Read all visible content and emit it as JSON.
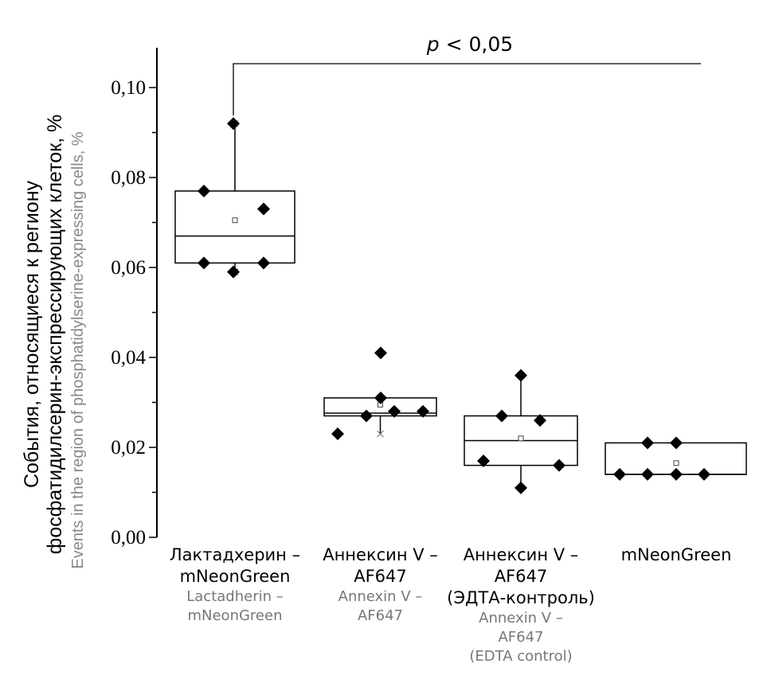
{
  "chart_data": {
    "type": "box",
    "ylabel": "События, относящиеся к региону фосфатидилсерин-экспрессирующих клеток, %",
    "ylabel_line1": "События, относящиеся к региону",
    "ylabel_line2": "фосфатидилсерин-экспрессирующих клеток, %",
    "ylabel_en": "Events in the region of phosphatidylserine-expressing cells, %",
    "ylim": [
      0,
      0.11
    ],
    "yticks": [
      0,
      0.02,
      0.04,
      0.06,
      0.08,
      0.1
    ],
    "ytick_labels": [
      "0,00",
      "0,02",
      "0,04",
      "0,06",
      "0,08",
      "0,10"
    ],
    "annotation": {
      "p": "p",
      "text": " < 0,05",
      "from_group": 0,
      "to_group": 3
    },
    "groups": [
      {
        "label_ru": [
          "Лактадхерин –",
          "mNeonGreen"
        ],
        "label_en": [
          "Lactadherin –",
          "mNeonGreen"
        ],
        "q1": 0.061,
        "median": 0.067,
        "q3": 0.077,
        "whisker_low": 0.059,
        "whisker_high": 0.092,
        "mean": 0.0705,
        "points": [
          0.092,
          0.077,
          0.073,
          0.061,
          0.061,
          0.059
        ]
      },
      {
        "label_ru": [
          "Аннексин V –",
          "AF647"
        ],
        "label_en": [
          "Annexin V –",
          "AF647"
        ],
        "q1": 0.027,
        "median": 0.0276,
        "q3": 0.031,
        "whisker_low": 0.023,
        "whisker_high": 0.031,
        "mean": 0.0295,
        "points": [
          0.041,
          0.031,
          0.027,
          0.028,
          0.028,
          0.023
        ]
      },
      {
        "label_ru": [
          "Аннексин V –",
          "AF647",
          "(ЭДТА-контроль)"
        ],
        "label_en": [
          "Annexin V –",
          "AF647",
          "(EDTA control)"
        ],
        "q1": 0.016,
        "median": 0.0215,
        "q3": 0.027,
        "whisker_low": 0.011,
        "whisker_high": 0.036,
        "mean": 0.022,
        "points": [
          0.036,
          0.027,
          0.026,
          0.017,
          0.016,
          0.011
        ]
      },
      {
        "label_ru": [
          "mNeonGreen"
        ],
        "label_en": [],
        "q1": 0.014,
        "median": 0.014,
        "q3": 0.021,
        "whisker_low": 0.014,
        "whisker_high": 0.021,
        "mean": 0.0165,
        "points": [
          0.021,
          0.021,
          0.014,
          0.014,
          0.014,
          0.014
        ]
      }
    ]
  }
}
